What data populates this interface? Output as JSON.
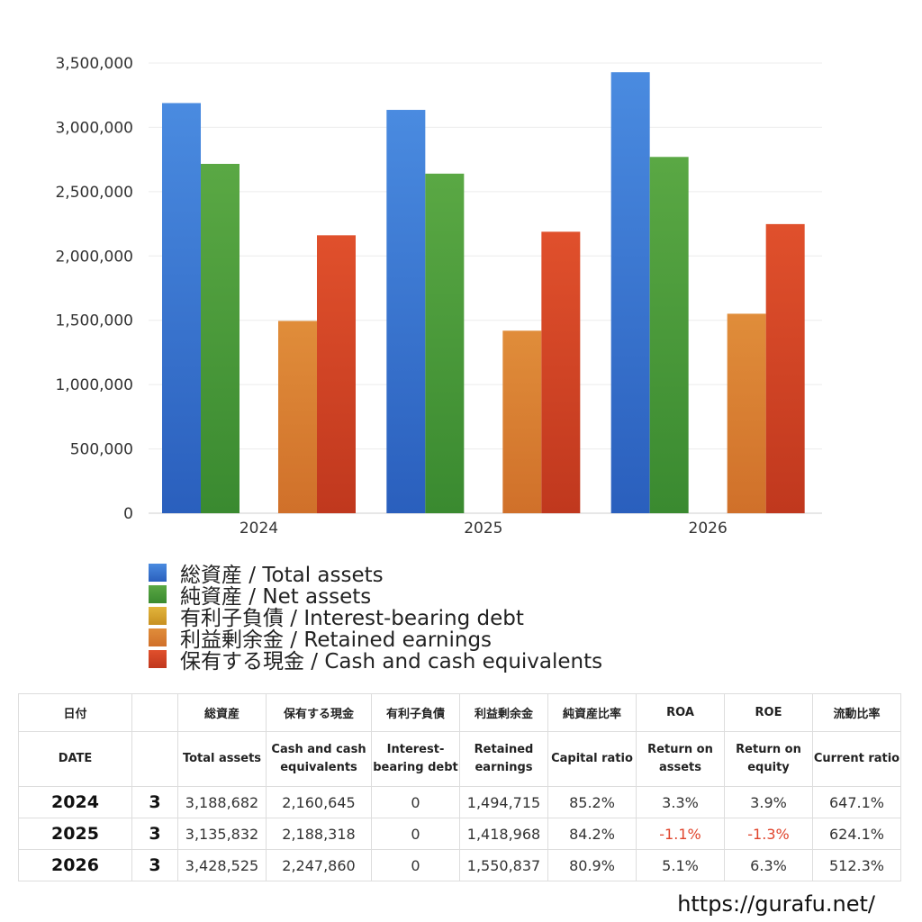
{
  "chart_data": {
    "type": "bar",
    "categories": [
      "2024",
      "2025",
      "2026"
    ],
    "ylim": [
      0,
      3500000
    ],
    "yticks": [
      "0",
      "500,000",
      "1,000,000",
      "1,500,000",
      "2,000,000",
      "2,500,000",
      "3,000,000",
      "3,500,000"
    ],
    "grid": true,
    "legend_position": "bottom",
    "series": [
      {
        "name": "総資産 / Total assets",
        "values": [
          3188682,
          3135832,
          3428525
        ],
        "color": "#4a8be0"
      },
      {
        "name": "純資産 / Net assets",
        "values": [
          2716000,
          2640000,
          2770000
        ],
        "color": "#5aa844"
      },
      {
        "name": "有利子負債 / Interest-bearing debt",
        "values": [
          0,
          0,
          0
        ],
        "color": "#e2b53c"
      },
      {
        "name": "利益剰余金 / Retained earnings",
        "values": [
          1494715,
          1418968,
          1550837
        ],
        "color": "#e08d3a"
      },
      {
        "name": "保有する現金 /  Cash and cash equivalents",
        "values": [
          2160645,
          2188318,
          2247860
        ],
        "color": "#e0502c"
      }
    ]
  },
  "table": {
    "headers_ja": [
      "日付",
      "",
      "総資産",
      "保有する現金",
      "有利子負債",
      "利益剰余金",
      "純資産比率",
      "ROA",
      "ROE",
      "流動比率"
    ],
    "headers_en": [
      "DATE",
      "",
      "Total assets",
      "Cash and cash equivalents",
      "Interest-bearing debt",
      "Retained earnings",
      "Capital ratio",
      "Return on assets",
      "Return on equity",
      "Current ratio"
    ],
    "rows": [
      {
        "year": "2024",
        "month": "3",
        "total_assets": "3,188,682",
        "cash": "2,160,645",
        "debt": "0",
        "retained": "1,494,715",
        "capital_ratio": "85.2%",
        "roa": "3.3%",
        "roe": "3.9%",
        "current_ratio": "647.1%"
      },
      {
        "year": "2025",
        "month": "3",
        "total_assets": "3,135,832",
        "cash": "2,188,318",
        "debt": "0",
        "retained": "1,418,968",
        "capital_ratio": "84.2%",
        "roa": "-1.1%",
        "roe": "-1.3%",
        "current_ratio": "624.1%"
      },
      {
        "year": "2026",
        "month": "3",
        "total_assets": "3,428,525",
        "cash": "2,247,860",
        "debt": "0",
        "retained": "1,550,837",
        "capital_ratio": "80.9%",
        "roa": "5.1%",
        "roe": "6.3%",
        "current_ratio": "512.3%"
      }
    ]
  },
  "site_url": "https://gurafu.net/"
}
